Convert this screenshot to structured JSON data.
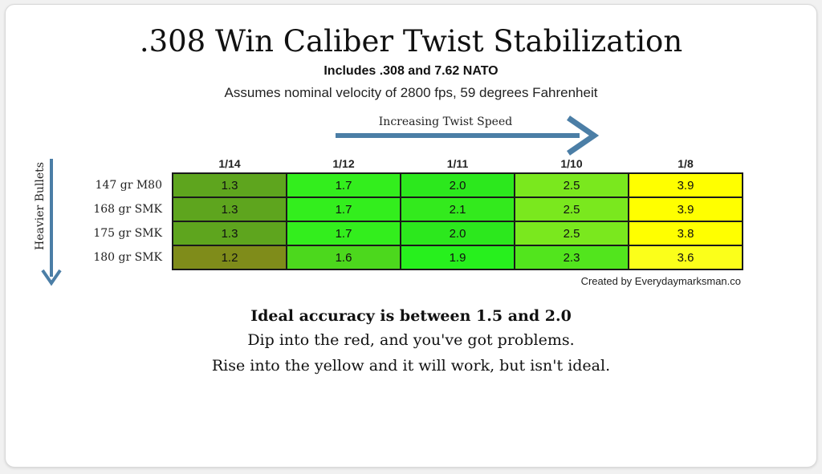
{
  "title": ".308 Win Caliber Twist Stabilization",
  "subtitle": "Includes .308 and 7.62 NATO",
  "assumption": "Assumes nominal velocity of 2800 fps, 59 degrees Fahrenheit",
  "arrow_twist_label": "Increasing Twist Speed",
  "arrow_weight_label": "Heavier Bullets",
  "credit": "Created by Everydaymarksman.co",
  "notes": {
    "ideal": "Ideal accuracy is between 1.5 and 2.0",
    "red": "Dip into the red, and you've got problems.",
    "yellow": "Rise into the yellow and it will work, but isn't ideal."
  },
  "colors": {
    "arrow": "#4b7ea6",
    "border": "#1a1a1a"
  },
  "chart_data": {
    "type": "table",
    "title": ".308 Win Caliber Twist Stabilization",
    "columns": [
      "1/14",
      "1/12",
      "1/11",
      "1/10",
      "1/8"
    ],
    "rows": [
      {
        "label": "147 gr M80",
        "values": [
          "1.3",
          "1.7",
          "2.0",
          "2.5",
          "3.9"
        ],
        "colors": [
          "#5ea51e",
          "#33ee1d",
          "#2ce81d",
          "#7ae81e",
          "#ffff00"
        ]
      },
      {
        "label": "168 gr SMK",
        "values": [
          "1.3",
          "1.7",
          "2.1",
          "2.5",
          "3.9"
        ],
        "colors": [
          "#5ea51e",
          "#33ee1d",
          "#33ea1d",
          "#7ae81e",
          "#ffff00"
        ]
      },
      {
        "label": "175 gr SMK",
        "values": [
          "1.3",
          "1.7",
          "2.0",
          "2.5",
          "3.8"
        ],
        "colors": [
          "#5ea51e",
          "#33ee1d",
          "#2ce81d",
          "#7ae81e",
          "#ffff00"
        ]
      },
      {
        "label": "180 gr SMK",
        "values": [
          "1.2",
          "1.6",
          "1.9",
          "2.3",
          "3.6"
        ],
        "colors": [
          "#7f8c1a",
          "#4cd81d",
          "#27f01d",
          "#52e51d",
          "#fbff1a"
        ]
      }
    ]
  }
}
